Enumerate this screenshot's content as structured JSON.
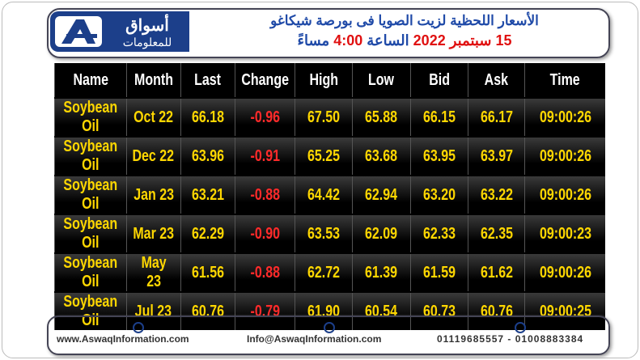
{
  "header": {
    "logo": {
      "name": "أسواق",
      "tagline": "للمعلومات"
    },
    "title": "الأسعار اللحظية لزيت الصويا فى بورصة شيكاغو",
    "subtitle": [
      "15 سبتمبر 2022",
      "الساعة",
      "4:00",
      "مساءً"
    ]
  },
  "table": {
    "columns": [
      "Name",
      "Month",
      "Last",
      "Change",
      "High",
      "Low",
      "Bid",
      "Ask",
      "Time"
    ],
    "rows": [
      [
        "Soybean Oil",
        "Oct 22",
        "66.18",
        "-0.96",
        "67.50",
        "65.88",
        "66.15",
        "66.17",
        "09:00:26"
      ],
      [
        "Soybean Oil",
        "Dec 22",
        "63.96",
        "-0.91",
        "65.25",
        "63.68",
        "63.95",
        "63.97",
        "09:00:26"
      ],
      [
        "Soybean Oil",
        "Jan 23",
        "63.21",
        "-0.88",
        "64.42",
        "62.94",
        "63.20",
        "63.22",
        "09:00:26"
      ],
      [
        "Soybean Oil",
        "Mar 23",
        "62.29",
        "-0.90",
        "63.53",
        "62.09",
        "62.33",
        "62.35",
        "09:00:23"
      ],
      [
        "Soybean Oil",
        "May 23",
        "61.56",
        "-0.88",
        "62.72",
        "61.39",
        "61.59",
        "61.62",
        "09:00:26"
      ],
      [
        "Soybean Oil",
        "Jul 23",
        "60.76",
        "-0.79",
        "61.90",
        "60.54",
        "60.73",
        "60.76",
        "09:00:25"
      ]
    ]
  },
  "footer": {
    "website": "www.AswaqInformation.com",
    "email": "Info@AswaqInformation.com",
    "phone": "01119685557 - 01008883384"
  }
}
